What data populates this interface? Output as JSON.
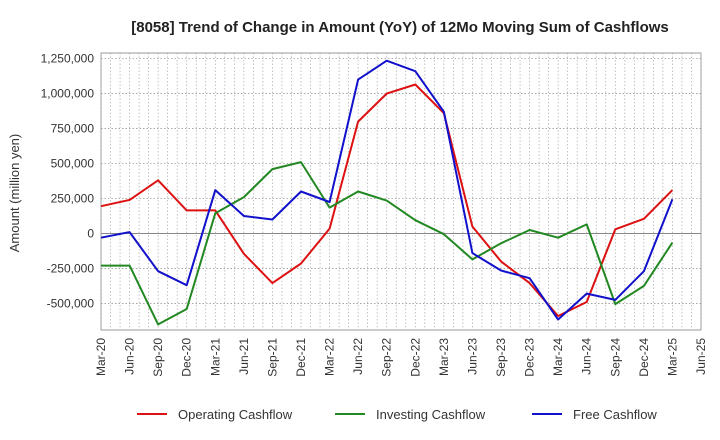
{
  "chart_data": {
    "type": "line",
    "title": "[8058]  Trend of Change in Amount (YoY) of 12Mo Moving Sum of Cashflows",
    "xlabel": "",
    "ylabel": "Amount (million yen)",
    "ylim": [
      -690000,
      1290000
    ],
    "yticks": [
      1250000,
      1000000,
      750000,
      500000,
      250000,
      0,
      -250000,
      -500000
    ],
    "ytick_labels": [
      "1,250,000",
      "1,000,000",
      "750,000",
      "500,000",
      "250,000",
      "0",
      "-250,000",
      "-500,000"
    ],
    "x_tick_labels": [
      "Mar-20",
      "Jun-20",
      "Sep-20",
      "Dec-20",
      "Mar-21",
      "Jun-21",
      "Sep-21",
      "Dec-21",
      "Mar-22",
      "Jun-22",
      "Sep-22",
      "Dec-22",
      "Mar-23",
      "Jun-23",
      "Sep-23",
      "Dec-23",
      "Mar-24",
      "Jun-24",
      "Sep-24",
      "Dec-24",
      "Mar-25",
      "Jun-25"
    ],
    "grid": true,
    "legend_position": "bottom",
    "series": [
      {
        "name": "Operating Cashflow",
        "color": "#dd1111",
        "values": [
          195000,
          240000,
          380000,
          165000,
          165000,
          -145000,
          -355000,
          -215000,
          35000,
          800000,
          1000000,
          1065000,
          860000,
          50000,
          -200000,
          -355000,
          -590000,
          -490000,
          30000,
          105000,
          310000
        ]
      },
      {
        "name": "Investing Cashflow",
        "color": "#228822",
        "values": [
          -230000,
          -230000,
          -650000,
          -540000,
          145000,
          260000,
          460000,
          510000,
          185000,
          300000,
          235000,
          95000,
          -5000,
          -185000,
          -70000,
          25000,
          -30000,
          65000,
          -505000,
          -375000,
          -65000
        ]
      },
      {
        "name": "Free Cashflow",
        "color": "#1111cc",
        "values": [
          -30000,
          10000,
          -270000,
          -370000,
          310000,
          125000,
          100000,
          300000,
          225000,
          1100000,
          1235000,
          1160000,
          870000,
          -140000,
          -265000,
          -320000,
          -615000,
          -430000,
          -475000,
          -270000,
          245000
        ]
      }
    ]
  }
}
